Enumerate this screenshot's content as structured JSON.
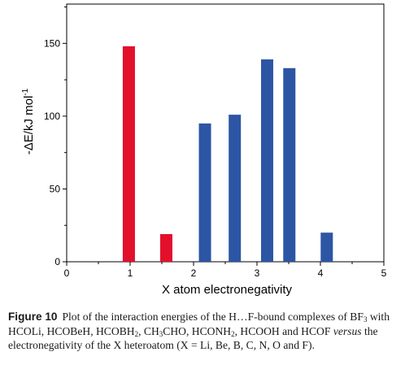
{
  "chart_data": {
    "type": "bar",
    "xlabel": "X atom electronegativity",
    "ylabel": "-ΔE/kJ mol",
    "ylabel_superscript": "-1",
    "xlim": [
      0,
      5
    ],
    "ylim": [
      0,
      177
    ],
    "xticks": [
      0,
      1,
      2,
      3,
      4,
      5
    ],
    "yticks": [
      0,
      50,
      100,
      150
    ],
    "grid": false,
    "colors": {
      "red": "#e3102c",
      "blue": "#2c55a4"
    },
    "bars": [
      {
        "x": 0.98,
        "value": 148,
        "color": "red"
      },
      {
        "x": 1.57,
        "value": 19,
        "color": "red"
      },
      {
        "x": 2.18,
        "value": 95,
        "color": "blue"
      },
      {
        "x": 2.65,
        "value": 101,
        "color": "blue"
      },
      {
        "x": 3.16,
        "value": 139,
        "color": "blue"
      },
      {
        "x": 3.51,
        "value": 133,
        "color": "blue"
      },
      {
        "x": 4.1,
        "value": 20,
        "color": "blue"
      }
    ]
  },
  "caption": {
    "label": "Figure 10",
    "text_parts": [
      {
        "t": "Plot of the interaction energies of the H…F-bound complexes of BF"
      },
      {
        "t": "3",
        "sub": true
      },
      {
        "t": " with HCOLi, HCOBeH, HCOBH"
      },
      {
        "t": "2",
        "sub": true
      },
      {
        "t": ", CH"
      },
      {
        "t": "3",
        "sub": true
      },
      {
        "t": "CHO, HCONH"
      },
      {
        "t": "2",
        "sub": true
      },
      {
        "t": ", HCOOH and HCOF "
      },
      {
        "t": "versus",
        "italic": true
      },
      {
        "t": " the electronegativity of the X heteroatom (X = Li, Be, B, C, N, O and F)."
      }
    ]
  }
}
